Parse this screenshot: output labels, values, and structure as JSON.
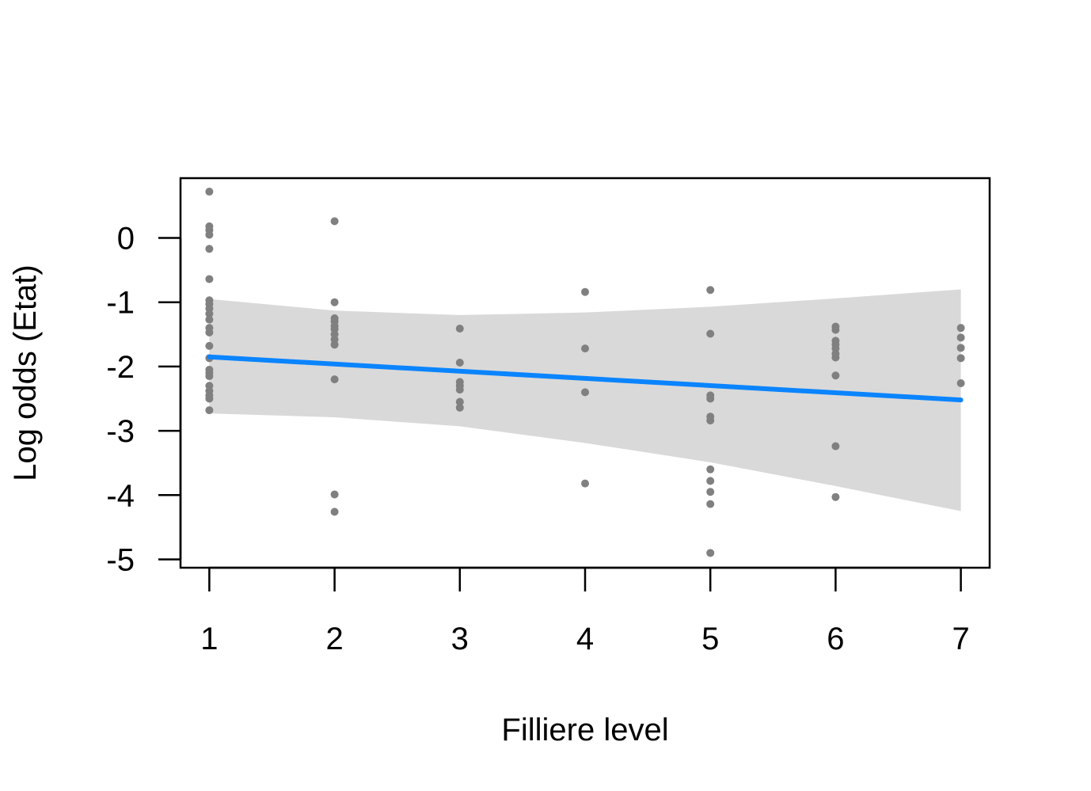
{
  "chart_data": {
    "type": "scatter",
    "title": "",
    "xlabel": "Filliere level",
    "ylabel": "Log odds (Etat)",
    "xlim": [
      0.77,
      7.23
    ],
    "ylim": [
      -5.13,
      0.93
    ],
    "xticks": [
      1,
      2,
      3,
      4,
      5,
      6,
      7
    ],
    "yticks": [
      -5,
      -4,
      -3,
      -2,
      -1,
      0
    ],
    "grid": false,
    "legend": "none",
    "points": [
      {
        "x": 1,
        "y": 0.72
      },
      {
        "x": 1,
        "y": 0.18
      },
      {
        "x": 1,
        "y": 0.12
      },
      {
        "x": 1,
        "y": 0.05
      },
      {
        "x": 1,
        "y": -0.17
      },
      {
        "x": 1,
        "y": -0.64
      },
      {
        "x": 1,
        "y": -0.97
      },
      {
        "x": 1,
        "y": -1.03
      },
      {
        "x": 1,
        "y": -1.1
      },
      {
        "x": 1,
        "y": -1.18
      },
      {
        "x": 1,
        "y": -1.27
      },
      {
        "x": 1,
        "y": -1.4
      },
      {
        "x": 1,
        "y": -1.47
      },
      {
        "x": 1,
        "y": -1.68
      },
      {
        "x": 1,
        "y": -1.87
      },
      {
        "x": 1,
        "y": -2.05
      },
      {
        "x": 1,
        "y": -2.1
      },
      {
        "x": 1,
        "y": -2.15
      },
      {
        "x": 1,
        "y": -2.3
      },
      {
        "x": 1,
        "y": -2.38
      },
      {
        "x": 1,
        "y": -2.45
      },
      {
        "x": 1,
        "y": -2.5
      },
      {
        "x": 1,
        "y": -2.68
      },
      {
        "x": 2,
        "y": 0.26
      },
      {
        "x": 2,
        "y": -1.0
      },
      {
        "x": 2,
        "y": -1.25
      },
      {
        "x": 2,
        "y": -1.3
      },
      {
        "x": 2,
        "y": -1.37
      },
      {
        "x": 2,
        "y": -1.42
      },
      {
        "x": 2,
        "y": -1.5
      },
      {
        "x": 2,
        "y": -1.58
      },
      {
        "x": 2,
        "y": -1.66
      },
      {
        "x": 2,
        "y": -2.2
      },
      {
        "x": 2,
        "y": -3.99
      },
      {
        "x": 2,
        "y": -4.26
      },
      {
        "x": 3,
        "y": -1.41
      },
      {
        "x": 3,
        "y": -1.94
      },
      {
        "x": 3,
        "y": -2.24
      },
      {
        "x": 3,
        "y": -2.3
      },
      {
        "x": 3,
        "y": -2.36
      },
      {
        "x": 3,
        "y": -2.55
      },
      {
        "x": 3,
        "y": -2.64
      },
      {
        "x": 4,
        "y": -0.84
      },
      {
        "x": 4,
        "y": -1.72
      },
      {
        "x": 4,
        "y": -2.4
      },
      {
        "x": 4,
        "y": -3.82
      },
      {
        "x": 5,
        "y": -0.81
      },
      {
        "x": 5,
        "y": -1.49
      },
      {
        "x": 5,
        "y": -2.45
      },
      {
        "x": 5,
        "y": -2.5
      },
      {
        "x": 5,
        "y": -2.78
      },
      {
        "x": 5,
        "y": -2.84
      },
      {
        "x": 5,
        "y": -3.6
      },
      {
        "x": 5,
        "y": -3.78
      },
      {
        "x": 5,
        "y": -3.95
      },
      {
        "x": 5,
        "y": -4.14
      },
      {
        "x": 5,
        "y": -4.9
      },
      {
        "x": 6,
        "y": -1.38
      },
      {
        "x": 6,
        "y": -1.43
      },
      {
        "x": 6,
        "y": -1.6
      },
      {
        "x": 6,
        "y": -1.66
      },
      {
        "x": 6,
        "y": -1.72
      },
      {
        "x": 6,
        "y": -1.8
      },
      {
        "x": 6,
        "y": -1.86
      },
      {
        "x": 6,
        "y": -2.14
      },
      {
        "x": 6,
        "y": -3.24
      },
      {
        "x": 6,
        "y": -4.03
      },
      {
        "x": 7,
        "y": -1.4
      },
      {
        "x": 7,
        "y": -1.55
      },
      {
        "x": 7,
        "y": -1.71
      },
      {
        "x": 7,
        "y": -1.87
      },
      {
        "x": 7,
        "y": -2.26
      }
    ],
    "fit_line": {
      "x": [
        1,
        7
      ],
      "y": [
        -1.85,
        -2.52
      ]
    },
    "confidence_band": {
      "x": [
        1,
        2,
        3,
        4,
        5,
        6,
        7
      ],
      "upper": [
        -0.95,
        -1.13,
        -1.2,
        -1.16,
        -1.07,
        -0.94,
        -0.8
      ],
      "lower": [
        -2.73,
        -2.79,
        -2.93,
        -3.19,
        -3.49,
        -3.86,
        -4.25
      ]
    },
    "colors": {
      "points": "#808080",
      "fit_line": "#0a84ff",
      "band": "#d9d9d9",
      "axis": "#000000"
    }
  }
}
